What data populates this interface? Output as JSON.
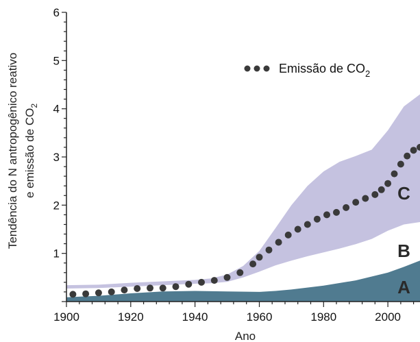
{
  "chart_data": {
    "type": "area",
    "title": "",
    "xlabel": "Ano",
    "ylabel": {
      "line1": "Tendência do N antropogênico reativo",
      "line2_prefix": "e emissão de CO",
      "line2_sub": "2"
    },
    "xlim": [
      1900,
      2010
    ],
    "ylim": [
      0,
      6
    ],
    "x_ticks": [
      1900,
      1920,
      1940,
      1960,
      1980,
      2000
    ],
    "y_ticks": [
      1,
      2,
      3,
      4,
      5,
      6
    ],
    "x_tick_labels": [
      "1900",
      "1920",
      "1940",
      "1960",
      "1980",
      "2000"
    ],
    "y_tick_labels": [
      "1",
      "2",
      "3",
      "4",
      "5",
      "6"
    ],
    "colors": {
      "band_A": "#507b90",
      "band_C": "#c5c2e0",
      "dots": "#3a3a3a"
    },
    "legend": {
      "label_prefix": "Emissão de CO",
      "label_sub": "2",
      "placement": "top-right"
    },
    "regions": [
      {
        "label": "A",
        "x": 2005,
        "y": 0.3
      },
      {
        "label": "B",
        "x": 2005,
        "y": 1.05
      },
      {
        "label": "C",
        "x": 2005,
        "y": 2.25
      }
    ],
    "band_A_upper": {
      "x": [
        1900,
        1910,
        1920,
        1930,
        1940,
        1950,
        1960,
        1965,
        1970,
        1980,
        1990,
        2000,
        2005,
        2010
      ],
      "y": [
        0.09,
        0.12,
        0.17,
        0.21,
        0.22,
        0.21,
        0.2,
        0.22,
        0.25,
        0.33,
        0.44,
        0.6,
        0.72,
        0.85
      ]
    },
    "band_C_lower": {
      "x": [
        1900,
        1910,
        1920,
        1930,
        1940,
        1945,
        1950,
        1955,
        1960,
        1965,
        1970,
        1975,
        1980,
        1985,
        1990,
        1995,
        2000,
        2005,
        2010
      ],
      "y": [
        0.27,
        0.28,
        0.31,
        0.34,
        0.37,
        0.38,
        0.41,
        0.5,
        0.62,
        0.75,
        0.85,
        0.94,
        1.02,
        1.1,
        1.19,
        1.3,
        1.47,
        1.6,
        1.65
      ]
    },
    "band_C_upper": {
      "x": [
        1900,
        1910,
        1920,
        1930,
        1940,
        1945,
        1950,
        1955,
        1960,
        1965,
        1970,
        1975,
        1980,
        1985,
        1990,
        1995,
        2000,
        2005,
        2010
      ],
      "y": [
        0.34,
        0.35,
        0.39,
        0.42,
        0.45,
        0.48,
        0.56,
        0.74,
        1.05,
        1.52,
        2.0,
        2.4,
        2.7,
        2.9,
        3.02,
        3.15,
        3.55,
        4.05,
        4.3
      ]
    },
    "series": [
      {
        "name": "Emissão de CO2",
        "x": [
          1902,
          1906,
          1910,
          1914,
          1918,
          1922,
          1926,
          1930,
          1934,
          1938,
          1942,
          1946,
          1950,
          1954,
          1958,
          1960,
          1963,
          1966,
          1969,
          1972,
          1975,
          1978,
          1981,
          1984,
          1987,
          1990,
          1993,
          1996,
          1998,
          2000,
          2002,
          2004,
          2006,
          2008,
          2010
        ],
        "y": [
          0.15,
          0.16,
          0.18,
          0.2,
          0.24,
          0.27,
          0.28,
          0.28,
          0.31,
          0.36,
          0.4,
          0.44,
          0.5,
          0.6,
          0.78,
          0.92,
          1.07,
          1.23,
          1.38,
          1.5,
          1.6,
          1.71,
          1.8,
          1.85,
          1.95,
          2.06,
          2.14,
          2.22,
          2.32,
          2.45,
          2.65,
          2.85,
          3.02,
          3.14,
          3.2
        ]
      }
    ]
  }
}
